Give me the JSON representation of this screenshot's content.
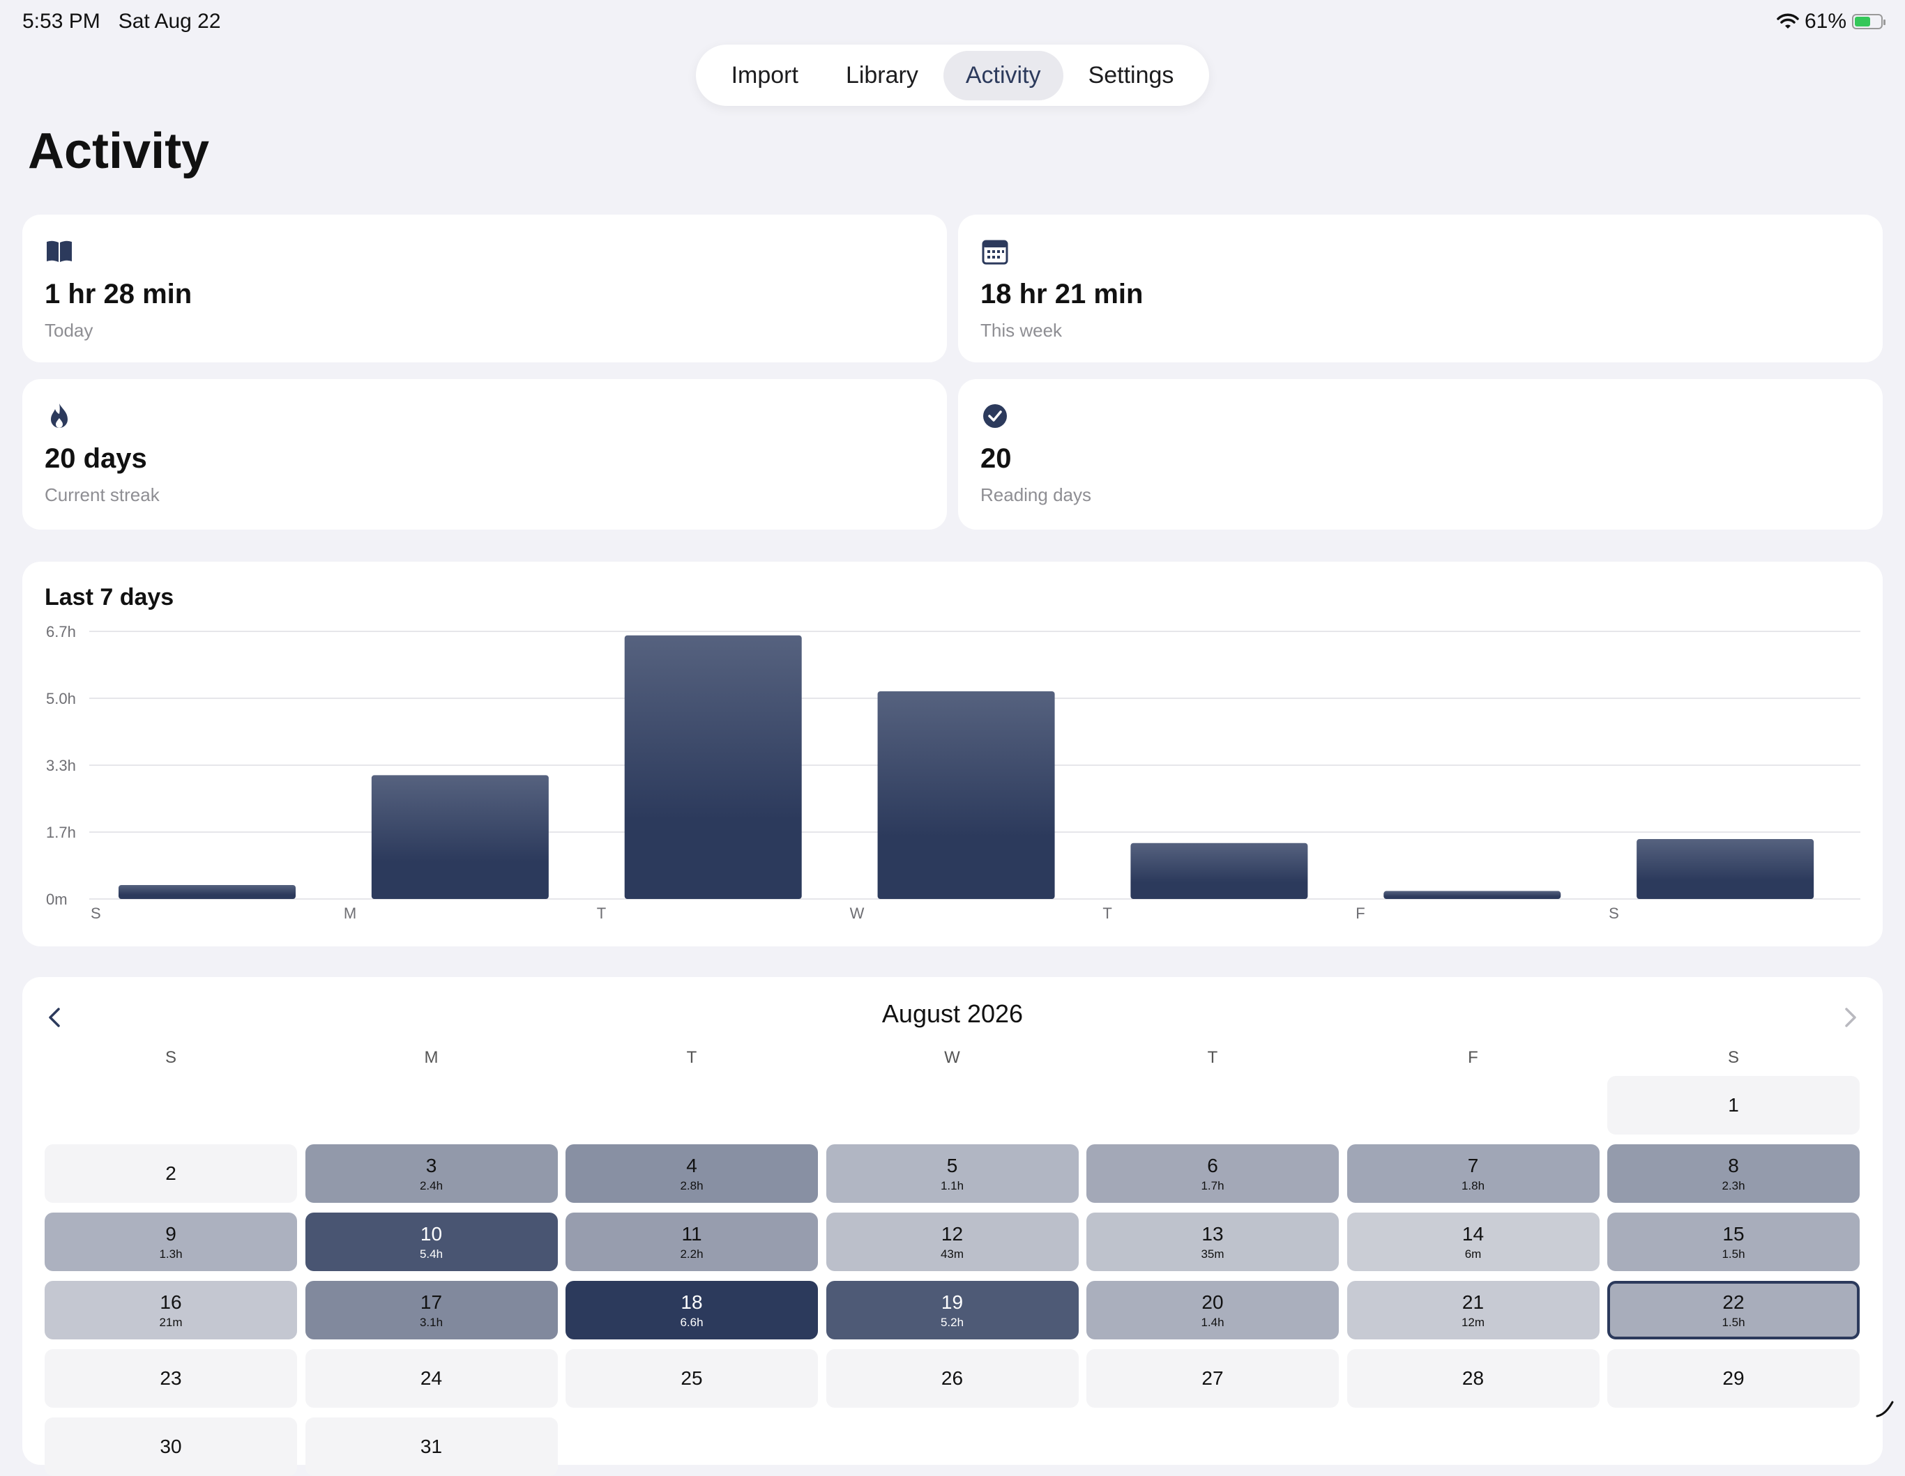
{
  "status_bar": {
    "time": "5:53 PM",
    "date": "Sat Aug 22",
    "battery": "61%",
    "battery_level": 0.61,
    "icons": [
      "wifi-icon",
      "battery-icon"
    ]
  },
  "tabs": [
    {
      "label": "Import",
      "active": false
    },
    {
      "label": "Library",
      "active": false
    },
    {
      "label": "Activity",
      "active": true
    },
    {
      "label": "Settings",
      "active": false
    }
  ],
  "page_title": "Activity",
  "stats": [
    {
      "icon": "book-icon",
      "value": "1 hr 28 min",
      "label": "Today"
    },
    {
      "icon": "calendar-icon",
      "value": "18 hr 21 min",
      "label": "This week"
    },
    {
      "icon": "flame-icon",
      "value": "20 days",
      "label": "Current streak"
    },
    {
      "icon": "checkmark-icon",
      "value": "20",
      "label": "Reading days"
    }
  ],
  "colors": {
    "accent": "#2c3a5c",
    "bar_top": "#56627f",
    "bar_bottom": "#2c3a5c"
  },
  "chart_data": {
    "type": "bar",
    "title": "Last 7 days",
    "categories": [
      "S",
      "M",
      "T",
      "W",
      "T",
      "F",
      "S"
    ],
    "values": [
      0.35,
      3.1,
      6.6,
      5.2,
      1.4,
      0.2,
      1.5
    ],
    "unit": "h",
    "ylim": [
      0,
      6.7
    ],
    "yticks": [
      {
        "value": 0,
        "label": "0m"
      },
      {
        "value": 1.675,
        "label": "1.7h"
      },
      {
        "value": 3.35,
        "label": "3.3h"
      },
      {
        "value": 5.025,
        "label": "5.0h"
      },
      {
        "value": 6.7,
        "label": "6.7h"
      }
    ],
    "grid": true
  },
  "calendar": {
    "month_label": "August 2026",
    "weekdays": [
      "S",
      "M",
      "T",
      "W",
      "T",
      "F",
      "S"
    ],
    "first_weekday_index": 6,
    "selected_day": 22,
    "max_hours": 6.6,
    "days": [
      {
        "day": "1",
        "time": "",
        "hours": 0
      },
      {
        "day": "2",
        "time": "",
        "hours": 0
      },
      {
        "day": "3",
        "time": "2.4h",
        "hours": 2.4
      },
      {
        "day": "4",
        "time": "2.8h",
        "hours": 2.8
      },
      {
        "day": "5",
        "time": "1.1h",
        "hours": 1.1
      },
      {
        "day": "6",
        "time": "1.7h",
        "hours": 1.7
      },
      {
        "day": "7",
        "time": "1.8h",
        "hours": 1.8
      },
      {
        "day": "8",
        "time": "2.3h",
        "hours": 2.3
      },
      {
        "day": "9",
        "time": "1.3h",
        "hours": 1.3
      },
      {
        "day": "10",
        "time": "5.4h",
        "hours": 5.4
      },
      {
        "day": "11",
        "time": "2.2h",
        "hours": 2.2
      },
      {
        "day": "12",
        "time": "43m",
        "hours": 0.72
      },
      {
        "day": "13",
        "time": "35m",
        "hours": 0.58
      },
      {
        "day": "14",
        "time": "6m",
        "hours": 0.1
      },
      {
        "day": "15",
        "time": "1.5h",
        "hours": 1.5
      },
      {
        "day": "16",
        "time": "21m",
        "hours": 0.35
      },
      {
        "day": "17",
        "time": "3.1h",
        "hours": 3.1
      },
      {
        "day": "18",
        "time": "6.6h",
        "hours": 6.6
      },
      {
        "day": "19",
        "time": "5.2h",
        "hours": 5.2
      },
      {
        "day": "20",
        "time": "1.4h",
        "hours": 1.4
      },
      {
        "day": "21",
        "time": "12m",
        "hours": 0.2
      },
      {
        "day": "22",
        "time": "1.5h",
        "hours": 1.5
      },
      {
        "day": "23",
        "time": "",
        "hours": 0
      },
      {
        "day": "24",
        "time": "",
        "hours": 0
      },
      {
        "day": "25",
        "time": "",
        "hours": 0
      },
      {
        "day": "26",
        "time": "",
        "hours": 0
      },
      {
        "day": "27",
        "time": "",
        "hours": 0
      },
      {
        "day": "28",
        "time": "",
        "hours": 0
      },
      {
        "day": "29",
        "time": "",
        "hours": 0
      },
      {
        "day": "30",
        "time": "",
        "hours": 0
      },
      {
        "day": "31",
        "time": "",
        "hours": 0
      }
    ]
  }
}
